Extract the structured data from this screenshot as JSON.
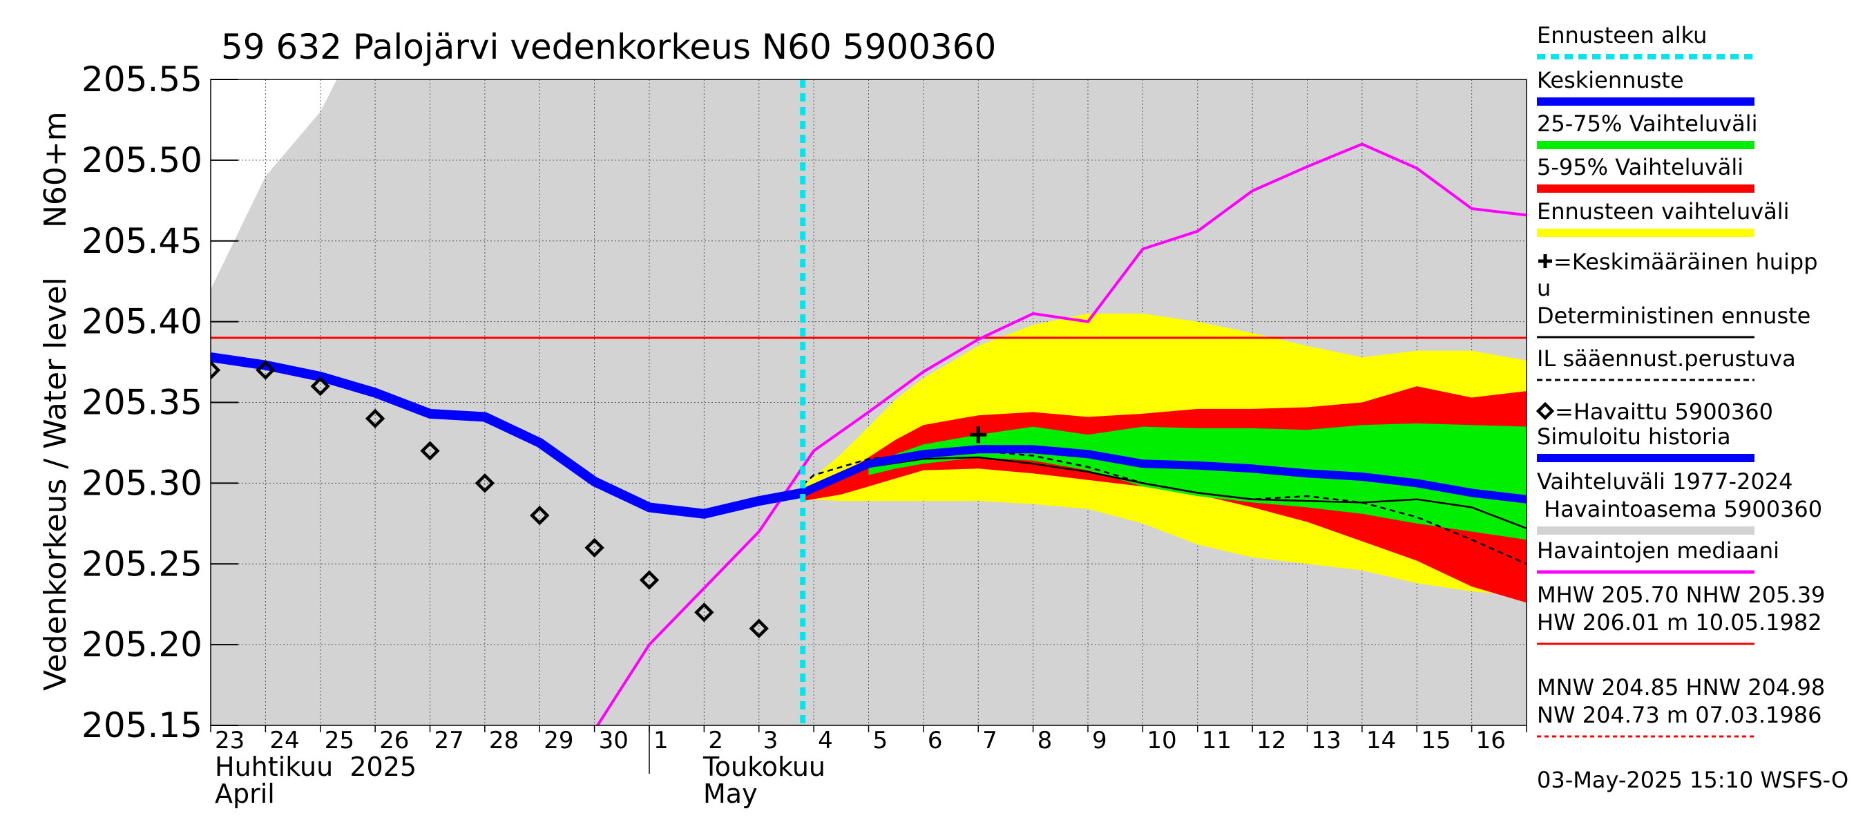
{
  "chart_data": {
    "type": "line",
    "title": "59 632 Palojärvi vedenkorkeus N60 5900360",
    "ylabel_left": "Vedenkorkeus / Water level",
    "ylabel_right": "N60+m",
    "ylim": [
      205.15,
      205.55
    ],
    "yticks": [
      205.15,
      205.2,
      205.25,
      205.3,
      205.35,
      205.4,
      205.45,
      205.5,
      205.55
    ],
    "ytick_labels": [
      "205.15",
      "205.20",
      "205.25",
      "205.30",
      "205.35",
      "205.40",
      "205.45",
      "205.50",
      "205.55"
    ],
    "x_unit": "day index (0 = 23 April 2025 00:00)",
    "xlim": [
      0,
      24
    ],
    "x_day_labels": [
      "23",
      "24",
      "25",
      "26",
      "27",
      "28",
      "29",
      "30",
      "1",
      "2",
      "3",
      "4",
      "5",
      "6",
      "7",
      "8",
      "9",
      "10",
      "11",
      "12",
      "13",
      "14",
      "15",
      "16"
    ],
    "month_labels": [
      {
        "fi": "Huhtikuu  2025",
        "en": "April",
        "start_day": 0
      },
      {
        "fi": "Toukokuu",
        "en": "May",
        "start_day": 8
      }
    ],
    "forecast_start_day": 10.8,
    "reference_line_value": 205.39,
    "hist_range_upper": {
      "x": [
        0,
        1,
        2,
        2.3,
        24
      ],
      "y": [
        205.42,
        205.49,
        205.53,
        205.55,
        205.55
      ]
    },
    "hist_range_lower": 205.15,
    "band_forecast_range": {
      "x": [
        10.8,
        11.5,
        12,
        12.5,
        13,
        14,
        15,
        16,
        17,
        18,
        19,
        20,
        21,
        22,
        23,
        24
      ],
      "upper": [
        205.298,
        205.318,
        205.335,
        205.352,
        205.365,
        205.385,
        205.398,
        205.405,
        205.405,
        205.4,
        205.393,
        205.385,
        205.378,
        205.382,
        205.382,
        205.376
      ],
      "lower": [
        205.29,
        205.289,
        205.289,
        205.289,
        205.289,
        205.289,
        205.287,
        205.284,
        205.275,
        205.262,
        205.254,
        205.25,
        205.246,
        205.238,
        205.233,
        205.23
      ]
    },
    "band_5_95": {
      "x": [
        10.8,
        11.5,
        12,
        12.5,
        13,
        14,
        15,
        16,
        17,
        18,
        19,
        20,
        21,
        22,
        23,
        24
      ],
      "upper": [
        205.294,
        205.305,
        205.316,
        205.327,
        205.336,
        205.342,
        205.344,
        205.341,
        205.343,
        205.346,
        205.346,
        205.347,
        205.35,
        205.36,
        205.353,
        205.357
      ],
      "lower": [
        205.289,
        205.293,
        205.298,
        205.303,
        205.308,
        205.309,
        205.306,
        205.302,
        205.298,
        205.293,
        205.285,
        205.276,
        205.264,
        205.252,
        205.236,
        205.226
      ]
    },
    "band_25_75": {
      "x": [
        12,
        12.5,
        13,
        14,
        15,
        16,
        17,
        18,
        19,
        20,
        21,
        22,
        23,
        24
      ],
      "upper": [
        205.31,
        205.318,
        205.324,
        205.33,
        205.335,
        205.33,
        205.335,
        205.334,
        205.334,
        205.333,
        205.336,
        205.337,
        205.336,
        205.335
      ],
      "lower": [
        205.305,
        205.309,
        205.312,
        205.316,
        205.314,
        205.308,
        205.298,
        205.292,
        205.288,
        205.285,
        205.281,
        205.275,
        205.27,
        205.265
      ]
    },
    "series": [
      {
        "name": "Simuloitu historia",
        "color": "#0000ff",
        "x": [
          0,
          1,
          2,
          3,
          4,
          5,
          6,
          7,
          8,
          9,
          10,
          10.8
        ],
        "y": [
          205.378,
          205.373,
          205.366,
          205.356,
          205.343,
          205.341,
          205.325,
          205.301,
          205.285,
          205.281,
          205.289,
          205.294
        ]
      },
      {
        "name": "Keskiennuste",
        "color": "#0000ff",
        "x": [
          10.8,
          12,
          13,
          14,
          15,
          16,
          17,
          18,
          19,
          20,
          21,
          22,
          23,
          24
        ],
        "y": [
          205.294,
          205.312,
          205.318,
          205.321,
          205.321,
          205.318,
          205.312,
          205.311,
          205.309,
          205.306,
          205.304,
          205.3,
          205.294,
          205.29
        ]
      },
      {
        "name": "Deterministinen ennuste",
        "color": "#000000",
        "x": [
          10.8,
          12,
          13,
          14,
          15,
          16,
          17,
          18,
          19,
          20,
          21,
          22,
          23,
          24
        ],
        "y": [
          205.296,
          205.31,
          205.315,
          205.316,
          205.312,
          205.307,
          205.3,
          205.294,
          205.29,
          205.289,
          205.288,
          205.29,
          205.285,
          205.272
        ]
      },
      {
        "name": "IL sääennust.perustuva",
        "color": "#000000",
        "x": [
          10.8,
          11,
          12,
          13,
          14,
          15,
          16,
          17,
          18,
          19,
          20,
          21,
          22,
          23,
          24
        ],
        "y": [
          205.299,
          205.305,
          205.315,
          205.318,
          205.32,
          205.317,
          205.31,
          205.3,
          205.294,
          205.29,
          205.292,
          205.288,
          205.279,
          205.265,
          205.25
        ]
      },
      {
        "name": "Havaintojen mediaani",
        "color": "#ff00ff",
        "x": [
          7,
          8,
          9,
          10,
          11,
          12,
          13,
          14,
          15,
          16,
          17,
          18,
          19,
          20,
          21,
          22,
          23,
          24
        ],
        "y": [
          205.147,
          205.2,
          205.235,
          205.27,
          205.32,
          205.344,
          205.369,
          205.389,
          205.405,
          205.4,
          205.445,
          205.456,
          205.481,
          205.496,
          205.51,
          205.495,
          205.47,
          205.466
        ]
      }
    ],
    "observed": {
      "name": "Havaittu 5900360",
      "x": [
        0,
        1,
        2,
        3,
        4,
        5,
        6,
        7,
        8,
        9,
        10
      ],
      "y": [
        205.37,
        205.37,
        205.36,
        205.34,
        205.32,
        205.3,
        205.28,
        205.26,
        205.24,
        205.22,
        205.21
      ]
    },
    "mean_peak": {
      "name": "Keskimääräinen huippu",
      "x": 14,
      "y": 205.33
    },
    "legend": [
      {
        "label": "Ennusteen alku",
        "color": "#00e5ee",
        "style": "dotted"
      },
      {
        "label": "Keskiennuste",
        "color": "#0000ff",
        "style": "thick"
      },
      {
        "label": "25-75% Vaihteluväli",
        "color": "#00ee00",
        "style": "thick"
      },
      {
        "label": "5-95% Vaihteluväli",
        "color": "#ff0000",
        "style": "thick"
      },
      {
        "label": "Ennusteen vaihteluväli",
        "color": "#ffff00",
        "style": "thick"
      },
      {
        "label_line1": "=Keskimääräinen huipp",
        "label_line2": "u",
        "style": "plus"
      },
      {
        "label": "Deterministinen ennuste",
        "color": "#000000",
        "style": "thin"
      },
      {
        "label": "IL sääennust.perustuva",
        "color": "#000000",
        "style": "dashed"
      },
      {
        "label": "=Havaittu 5900360",
        "style": "diamond"
      },
      {
        "label": "Simuloitu historia",
        "color": "#0000ff",
        "style": "thick"
      },
      {
        "label_line1": "Vaihteluväli 1977-2024",
        "label_line2": " Havaintoasema 5900360",
        "color": "#d3d3d3",
        "style": "thick"
      },
      {
        "label": "Havaintojen mediaani",
        "color": "#ff00ff",
        "style": "medium"
      },
      {
        "lines": [
          "MHW 205.70 NHW 205.39",
          "HW 206.01 m 10.05.1982"
        ],
        "color": "#ff0000",
        "style": "thin"
      },
      {
        "lines": [
          "MNW 204.85 HNW 204.98",
          "NW 204.73 m 07.03.1986"
        ],
        "color": "#ff0000",
        "style": "dashed"
      }
    ],
    "footer": "03-May-2025 15:10 WSFS-O"
  },
  "colors": {
    "grey_band": "#d3d3d3",
    "yellow_band": "#ffff00",
    "red_band": "#ff0000",
    "green_band": "#00ee00",
    "blue": "#0000ff",
    "magenta": "#ff00ff",
    "cyan": "#00e5ee",
    "reference_red": "#ff0000"
  }
}
